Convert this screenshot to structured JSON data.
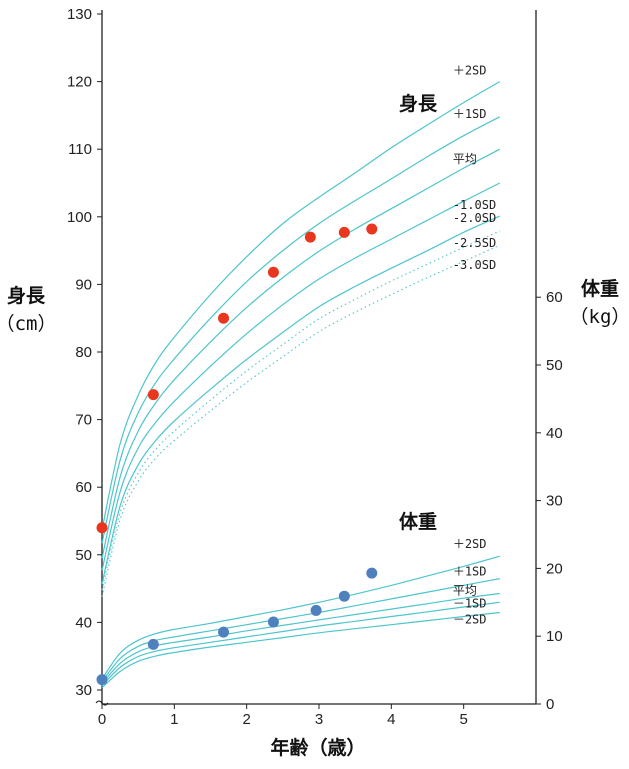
{
  "chart_data": {
    "type": "line",
    "xlabel": "年齢（歳）",
    "x_ticks": [
      "0",
      "1",
      "2",
      "3",
      "4",
      "5"
    ],
    "xlim": [
      0,
      6
    ],
    "left_axis": {
      "title": "身長",
      "unit": "（cm）",
      "ylim": [
        30,
        130
      ],
      "ticks": [
        "30",
        "40",
        "50",
        "60",
        "70",
        "80",
        "90",
        "100",
        "110",
        "120",
        "130"
      ]
    },
    "right_axis": {
      "title": "体重",
      "unit": "（kg）",
      "ylim": [
        0,
        60
      ],
      "ticks": [
        "0",
        "10",
        "20",
        "30",
        "40",
        "50",
        "60"
      ]
    },
    "height": {
      "title": "身長",
      "x": [
        0,
        0.25,
        0.5,
        0.75,
        1,
        1.5,
        2,
        2.5,
        3,
        3.5,
        4,
        4.5,
        5,
        5.5
      ],
      "curves": [
        {
          "label": "＋2SD",
          "style": "solid",
          "values": [
            53.7,
            66.4,
            73.6,
            78.6,
            82.2,
            88.5,
            94.1,
            99.0,
            102.9,
            106.5,
            110.2,
            113.6,
            116.9,
            120.0
          ]
        },
        {
          "label": "＋1SD",
          "style": "solid",
          "values": [
            51.7,
            64.0,
            71.0,
            75.6,
            79.0,
            85.0,
            90.4,
            95.0,
            99.0,
            102.4,
            105.6,
            108.9,
            112.0,
            114.8
          ]
        },
        {
          "label": "平均",
          "style": "solid",
          "values": [
            49.5,
            61.5,
            68.3,
            72.6,
            75.9,
            81.5,
            86.6,
            91.0,
            94.9,
            98.2,
            101.2,
            104.2,
            107.2,
            110.0
          ]
        },
        {
          "label": "-1.0SD",
          "style": "solid",
          "values": [
            47.7,
            59.3,
            65.8,
            69.7,
            72.7,
            77.9,
            82.7,
            87.0,
            90.8,
            93.9,
            96.7,
            99.5,
            102.3,
            105.0
          ]
        },
        {
          "label": "-2.0SD",
          "style": "solid",
          "values": [
            45.7,
            57.2,
            63.3,
            67.0,
            69.8,
            74.5,
            78.9,
            82.9,
            86.7,
            89.7,
            92.4,
            95.0,
            97.7,
            100.1
          ]
        },
        {
          "label": "-2.5SD",
          "style": "dotted",
          "values": [
            44.8,
            56.2,
            62.1,
            65.7,
            68.3,
            72.9,
            77.2,
            81.1,
            84.9,
            87.8,
            90.5,
            93.0,
            95.5,
            97.9
          ]
        },
        {
          "label": "-3.0SD",
          "style": "dotted",
          "values": [
            43.8,
            55.2,
            60.9,
            64.4,
            66.9,
            71.3,
            75.5,
            79.3,
            83.0,
            85.9,
            88.5,
            91.0,
            93.4,
            95.8
          ]
        }
      ],
      "points": [
        {
          "x": 0.0,
          "y": 54.0
        },
        {
          "x": 0.71,
          "y": 73.7
        },
        {
          "x": 1.68,
          "y": 85.0
        },
        {
          "x": 2.37,
          "y": 91.8
        },
        {
          "x": 2.88,
          "y": 97.0
        },
        {
          "x": 3.35,
          "y": 97.7
        },
        {
          "x": 3.73,
          "y": 98.2
        }
      ]
    },
    "weight": {
      "title": "体重",
      "x": [
        0,
        0.25,
        0.5,
        0.75,
        1,
        1.5,
        2,
        2.5,
        3,
        3.5,
        4,
        4.5,
        5,
        5.5
      ],
      "curves": [
        {
          "label": "＋2SD",
          "style": "solid",
          "values": [
            3.7,
            7.5,
            9.4,
            10.4,
            11.0,
            11.9,
            12.9,
            13.9,
            15.0,
            16.2,
            17.5,
            18.9,
            20.3,
            21.8
          ]
        },
        {
          "label": "＋1SD",
          "style": "solid",
          "values": [
            3.3,
            6.7,
            8.5,
            9.4,
            9.9,
            10.8,
            11.7,
            12.6,
            13.5,
            14.5,
            15.5,
            16.5,
            17.5,
            18.5
          ]
        },
        {
          "label": "平均",
          "style": "solid",
          "values": [
            3.0,
            6.0,
            7.7,
            8.6,
            9.1,
            9.9,
            10.8,
            11.6,
            12.4,
            13.2,
            14.0,
            14.8,
            15.6,
            16.3
          ]
        },
        {
          "label": "－1SD",
          "style": "solid",
          "values": [
            2.7,
            5.4,
            7.0,
            7.8,
            8.3,
            9.1,
            9.9,
            10.7,
            11.5,
            12.2,
            12.9,
            13.6,
            14.3,
            15.0
          ]
        },
        {
          "label": "－2SD",
          "style": "solid",
          "values": [
            2.4,
            4.8,
            6.3,
            7.1,
            7.6,
            8.4,
            9.1,
            9.8,
            10.5,
            11.1,
            11.7,
            12.3,
            12.9,
            13.5
          ]
        }
      ],
      "points": [
        {
          "x": 0.0,
          "y": 3.6
        },
        {
          "x": 0.71,
          "y": 8.8
        },
        {
          "x": 1.68,
          "y": 10.6
        },
        {
          "x": 2.37,
          "y": 12.1
        },
        {
          "x": 2.96,
          "y": 13.8
        },
        {
          "x": 3.35,
          "y": 15.9
        },
        {
          "x": 3.73,
          "y": 19.3
        }
      ]
    },
    "colors": {
      "curve": "#4dc5cc",
      "height_point": "#e8371e",
      "weight_point": "#4f80be",
      "axis": "#222222"
    }
  }
}
